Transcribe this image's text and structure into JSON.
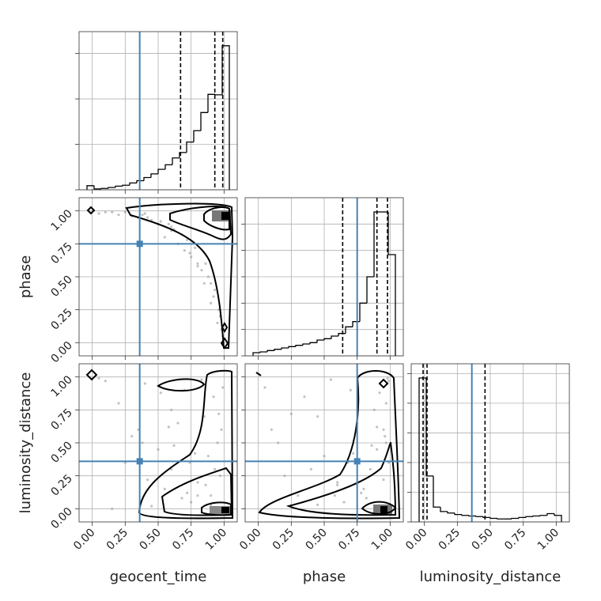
{
  "chart_data": {
    "type": "corner",
    "parameters": [
      "geocent_time",
      "phase",
      "luminosity_distance"
    ],
    "xlim": [
      -0.1,
      1.1
    ],
    "ticks": [
      {
        "value": 0,
        "label": "0.00"
      },
      {
        "value": 0.25,
        "label": "0.25"
      },
      {
        "value": 0.5,
        "label": "0.50"
      },
      {
        "value": 0.75,
        "label": "0.75"
      },
      {
        "value": 1,
        "label": "1.00"
      }
    ],
    "truths": [
      0.36,
      0.75,
      0.36
    ],
    "truth_color": "#4682b4",
    "hist_color": "#000000",
    "scatter_color": "#9a9a9a",
    "grid": true,
    "histograms": [
      {
        "bins": [
          -0.04,
          0.014,
          0.068,
          0.122,
          0.176,
          0.23,
          0.284,
          0.338,
          0.392,
          0.446,
          0.5,
          0.554,
          0.608,
          0.662,
          0.716,
          0.77,
          0.824,
          0.878,
          0.932,
          0.986,
          1.04
        ],
        "counts": [
          0.09,
          0.02,
          0.03,
          0.05,
          0.08,
          0.1,
          0.15,
          0.2,
          0.27,
          0.35,
          0.45,
          0.55,
          0.7,
          0.82,
          1.05,
          1.3,
          1.7,
          2.1,
          2.09,
          3.17
        ],
        "ylim": [
          0,
          3.48
        ],
        "yticks": [
          0,
          1,
          2,
          3
        ],
        "quantiles": [
          0.67,
          0.93,
          0.99
        ]
      },
      {
        "bins": [
          -0.04,
          0.014,
          0.068,
          0.122,
          0.176,
          0.23,
          0.284,
          0.338,
          0.392,
          0.446,
          0.5,
          0.554,
          0.608,
          0.662,
          0.716,
          0.77,
          0.824,
          0.878,
          0.932,
          0.986,
          1.04
        ],
        "counts": [
          0.12,
          0.15,
          0.2,
          0.25,
          0.3,
          0.35,
          0.4,
          0.45,
          0.5,
          0.6,
          0.65,
          0.75,
          0.85,
          1.1,
          1.3,
          2.0,
          3.0,
          5.46,
          5.46,
          3.84
        ],
        "ylim": [
          0,
          6
        ],
        "yticks": [
          0,
          1,
          2,
          3,
          4,
          5
        ],
        "quantiles": [
          0.64,
          0.9,
          0.98
        ]
      },
      {
        "bins": [
          -0.04,
          0.014,
          0.068,
          0.122,
          0.176,
          0.23,
          0.284,
          0.338,
          0.392,
          0.446,
          0.5,
          0.554,
          0.608,
          0.662,
          0.716,
          0.77,
          0.824,
          0.878,
          0.932,
          0.986,
          1.04
        ],
        "counts": [
          4.85,
          1.55,
          0.5,
          0.35,
          0.3,
          0.25,
          0.22,
          0.2,
          0.18,
          0.15,
          0.12,
          0.1,
          0.1,
          0.12,
          0.15,
          0.18,
          0.2,
          0.22,
          0.28,
          0.22
        ],
        "ylim": [
          0,
          5.33
        ],
        "yticks": [
          0,
          1,
          2,
          3,
          4,
          5
        ],
        "quantiles": [
          -0.01,
          0.02,
          0.46
        ]
      }
    ],
    "samples": [
      [
        0.05,
        0.2,
        0.35,
        0.5,
        0.6,
        0.7,
        0.8,
        0.85,
        0.9,
        0.95,
        0.25,
        0.4,
        0.55,
        0.65,
        0.75,
        0.88,
        0.92,
        0.97,
        0.3,
        0.45,
        0.6,
        0.72,
        0.83,
        0.93,
        0.98,
        0.15,
        0.38,
        0.52,
        0.68,
        0.78,
        0.86,
        0.96,
        0.1,
        0.42,
        0.58,
        0.74,
        0.9,
        0.99,
        0.62,
        0.8
      ],
      [
        0.98,
        0.97,
        0.95,
        0.9,
        0.85,
        0.7,
        0.6,
        0.45,
        0.3,
        0.15,
        0.99,
        0.98,
        0.8,
        0.75,
        0.65,
        0.5,
        0.35,
        0.2,
        0.96,
        0.93,
        0.88,
        0.78,
        0.55,
        0.4,
        0.1,
        0.99,
        0.97,
        0.92,
        0.82,
        0.72,
        0.6,
        0.25,
        0.99,
        0.95,
        0.9,
        0.68,
        0.45,
        0.05,
        0.86,
        0.58
      ],
      [
        0.99,
        0.8,
        0.6,
        0.45,
        0.3,
        0.9,
        0.2,
        0.7,
        0.1,
        0.5,
        0.35,
        0.95,
        0.15,
        0.65,
        0.05,
        0.4,
        0.85,
        0.25,
        0.55,
        0.02,
        0.75,
        0.12,
        0.98,
        0.3,
        0.6,
        0.0,
        0.5,
        0.88,
        0.08,
        0.42,
        0.18,
        0.72,
        0.97,
        0.22,
        0.62,
        0.35,
        0.03,
        0.92,
        0.48,
        0.1
      ]
    ]
  }
}
